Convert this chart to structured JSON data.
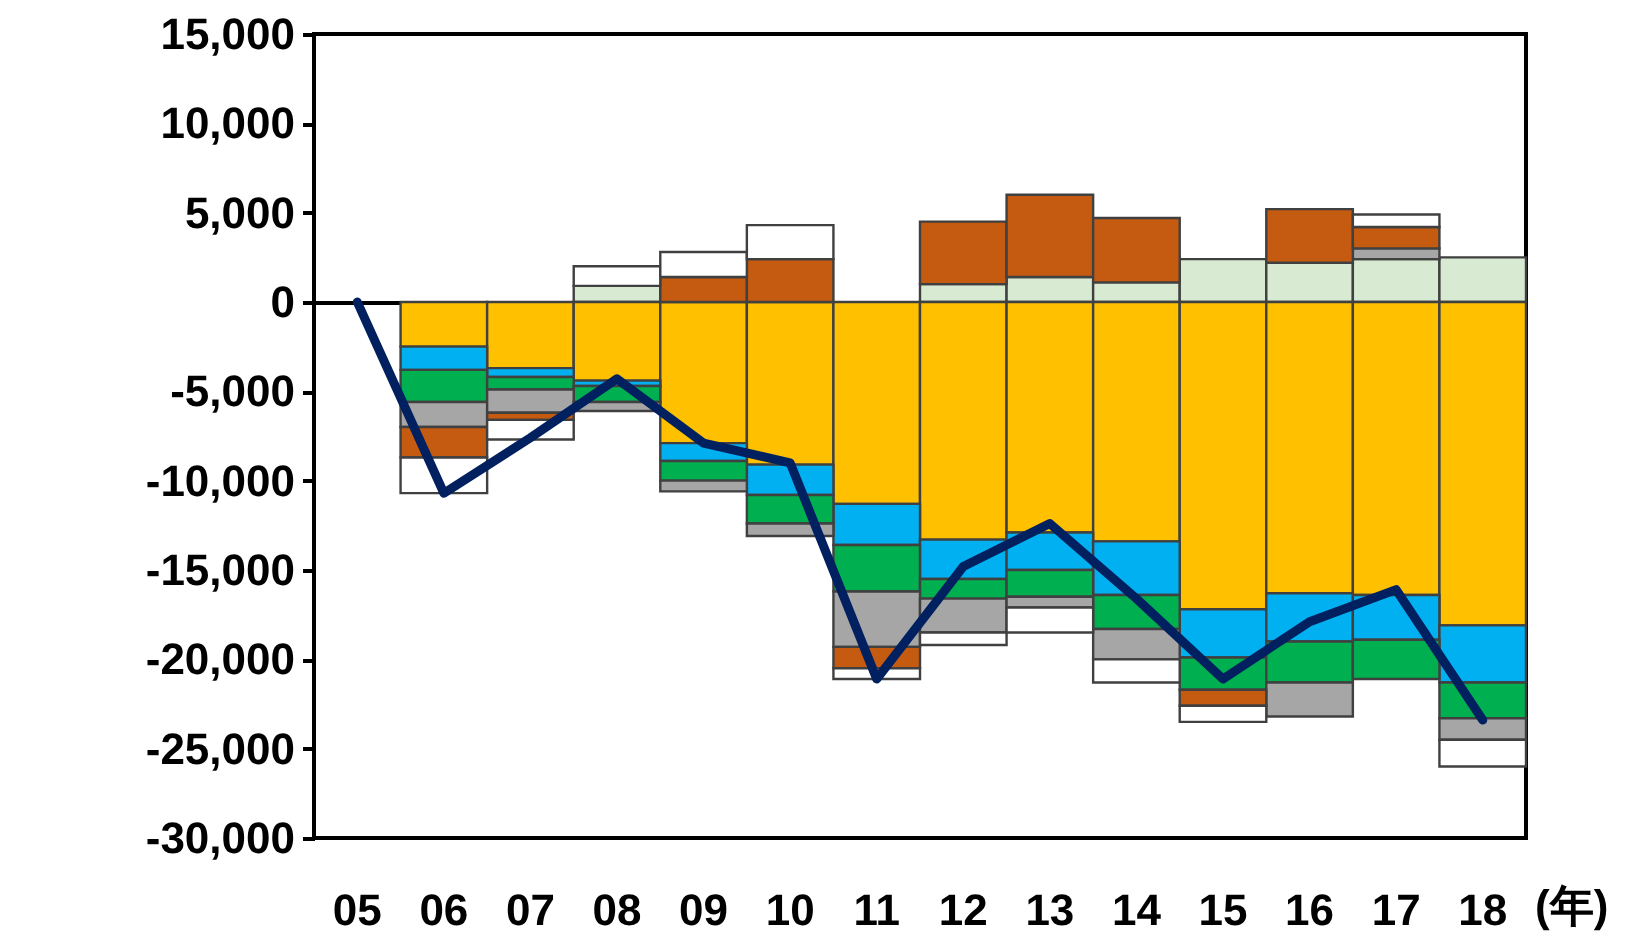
{
  "chart_data": {
    "type": "bar",
    "stacked": true,
    "xlabel": "(年)",
    "categories": [
      "05",
      "06",
      "07",
      "08",
      "09",
      "10",
      "11",
      "12",
      "13",
      "14",
      "15",
      "16",
      "17",
      "18"
    ],
    "series": [
      {
        "color": "#d9ead3",
        "values": [
          null,
          null,
          null,
          900,
          null,
          null,
          null,
          1000,
          1400,
          1100,
          2400,
          2200,
          2400,
          2500
        ]
      },
      {
        "color": "#ffc000",
        "values": [
          null,
          -2500,
          -3700,
          -4400,
          -7900,
          -9100,
          -11300,
          -13300,
          -12900,
          -13400,
          -17200,
          -16300,
          -16400,
          -18100
        ]
      },
      {
        "color": "#00b0f0",
        "values": [
          null,
          -1300,
          -500,
          -300,
          -1000,
          -1700,
          -2300,
          -2200,
          -2100,
          -3000,
          -2700,
          -2700,
          -2500,
          -3200
        ]
      },
      {
        "color": "#00b050",
        "values": [
          null,
          -1800,
          -700,
          -900,
          -1100,
          -1600,
          -2600,
          -1100,
          -1500,
          -1900,
          -1800,
          -2300,
          -2200,
          -2000
        ]
      },
      {
        "color": "#a6a6a6",
        "values": [
          null,
          -1400,
          -1300,
          -500,
          -600,
          -700,
          -3100,
          -1900,
          -600,
          -1700,
          null,
          -1900,
          600,
          -1200
        ]
      },
      {
        "color": "#c55a11",
        "values": [
          null,
          -1700,
          -400,
          null,
          1400,
          2400,
          -1200,
          3500,
          4600,
          3600,
          -900,
          3000,
          1200,
          null
        ]
      },
      {
        "color": "#ffffff",
        "values": [
          null,
          -2000,
          -1100,
          1100,
          1400,
          1900,
          -600,
          -700,
          -1400,
          -1300,
          -900,
          null,
          700,
          -1500
        ]
      },
      {
        "type": "line",
        "color": "#002060",
        "values": [
          0,
          -10700,
          -7600,
          -4300,
          -7900,
          -9000,
          -21100,
          -14800,
          -12400,
          -16600,
          -21100,
          -17900,
          -16100,
          -23400
        ]
      }
    ],
    "ylim": [
      -30000,
      15000
    ],
    "yticks": [
      {
        "value": -30000,
        "label": "-30,000"
      },
      {
        "value": -25000,
        "label": "-25,000"
      },
      {
        "value": -20000,
        "label": "-20,000"
      },
      {
        "value": -15000,
        "label": "-15,000"
      },
      {
        "value": -10000,
        "label": "-10,000"
      },
      {
        "value": -5000,
        "label": "-5,000"
      },
      0,
      {
        "value": 5000,
        "label": "5,000"
      },
      {
        "value": 10000,
        "label": "10,000"
      },
      {
        "value": 15000,
        "label": "15,000"
      }
    ]
  }
}
